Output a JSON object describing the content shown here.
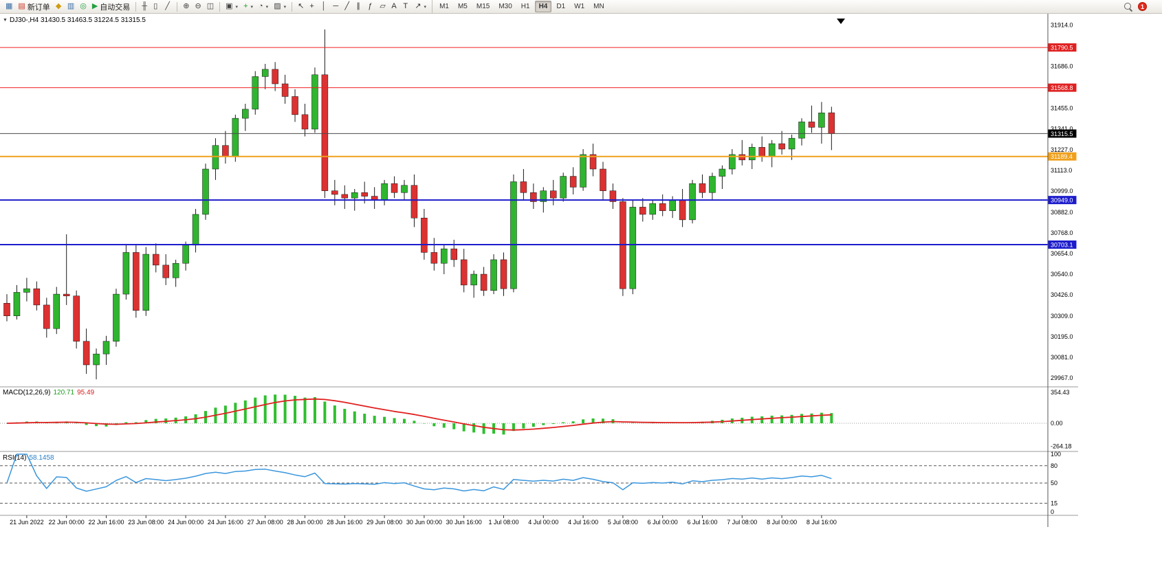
{
  "toolbar": {
    "groups": [
      {
        "name": "file-group",
        "items": [
          {
            "name": "new-chart-button",
            "glyph": "▦",
            "color": "#3a6ea5"
          },
          {
            "name": "new-order-button",
            "glyph": "▤",
            "color": "#cc3322",
            "label": "新订单"
          },
          {
            "name": "strategy-tester-button",
            "glyph": "◆",
            "color": "#d09c10"
          },
          {
            "name": "data-window-button",
            "glyph": "▥",
            "color": "#3a6ea5"
          },
          {
            "name": "navigator-button",
            "glyph": "◎",
            "color": "#22a040"
          },
          {
            "name": "auto-trading-button",
            "glyph": "▶",
            "color": "#22a040",
            "label": "自动交易"
          }
        ]
      },
      {
        "name": "chart-type-group",
        "items": [
          {
            "name": "bar-chart-button",
            "glyph": "╫",
            "color": "#444444"
          },
          {
            "name": "candlestick-chart-button",
            "glyph": "▯",
            "color": "#444444"
          },
          {
            "name": "line-chart-button",
            "glyph": "╱",
            "color": "#444444"
          }
        ]
      },
      {
        "name": "zoom-group",
        "items": [
          {
            "name": "zoom-in-button",
            "glyph": "⊕",
            "color": "#444444"
          },
          {
            "name": "zoom-out-button",
            "glyph": "⊖",
            "color": "#444444"
          },
          {
            "name": "tile-windows-button",
            "glyph": "◫",
            "color": "#444444"
          }
        ]
      },
      {
        "name": "chart-manage-group",
        "items": [
          {
            "name": "arrange-charts-button",
            "glyph": "▣",
            "color": "#444444",
            "dropdown": true
          },
          {
            "name": "indicators-button",
            "glyph": "+",
            "color": "#1d9e1d",
            "dropdown": true
          },
          {
            "name": "periods-button",
            "glyph": "◔",
            "color": "#444444",
            "dropdown": true
          },
          {
            "name": "templates-button",
            "glyph": "▨",
            "color": "#444444",
            "dropdown": true
          }
        ]
      },
      {
        "name": "drawing-group",
        "items": [
          {
            "name": "cursor-button",
            "glyph": "↖",
            "color": "#333333"
          },
          {
            "name": "crosshair-button",
            "glyph": "+",
            "color": "#333333"
          },
          {
            "name": "vertical-line-button",
            "glyph": "│",
            "color": "#333333"
          },
          {
            "name": "horizontal-line-button",
            "glyph": "─",
            "color": "#333333"
          },
          {
            "name": "trendline-button",
            "glyph": "╱",
            "color": "#333333"
          },
          {
            "name": "channel-button",
            "glyph": "∥",
            "color": "#333333"
          },
          {
            "name": "fibonacci-button",
            "glyph": "ƒ",
            "color": "#333333"
          },
          {
            "name": "shapes-button",
            "glyph": "▱",
            "color": "#333333"
          },
          {
            "name": "text-button",
            "glyph": "A",
            "color": "#333333"
          },
          {
            "name": "text-label-button",
            "glyph": "T",
            "color": "#333333"
          },
          {
            "name": "arrows-button",
            "glyph": "↗",
            "color": "#333333",
            "dropdown": true
          }
        ]
      }
    ],
    "timeframes": [
      "M1",
      "M5",
      "M15",
      "M30",
      "H1",
      "H4",
      "D1",
      "W1",
      "MN"
    ],
    "active_timeframe": "H4",
    "notification_count": "1"
  },
  "chart": {
    "menu_glyph": "▼",
    "header": "DJ30-,H4  31430.5 31463.5 31224.5 31315.5",
    "symbol": "DJ30-",
    "period": "H4",
    "ohlc": {
      "open": "31430.5",
      "high": "31463.5",
      "low": "31224.5",
      "close": "31315.5"
    }
  },
  "indicators": {
    "macd": {
      "label": "MACD(12,26,9)",
      "value_main": "120.71",
      "value_signal": "95.49",
      "fast": 12,
      "slow": 26,
      "signal": 9
    },
    "rsi": {
      "label": "RSI(14)",
      "value": "58.1458",
      "period": 14,
      "levels": [
        80,
        50,
        15
      ]
    }
  },
  "price_axis": {
    "labels": [
      "31914.0",
      "31686.0",
      "31455.0",
      "31341.0",
      "31227.0",
      "31113.0",
      "30999.0",
      "30882.0",
      "30768.0",
      "30654.0",
      "30540.0",
      "30426.0",
      "30309.0",
      "30195.0",
      "30081.0",
      "29967.0"
    ],
    "current_price": {
      "value": 31315.5,
      "label": "31315.5",
      "bg": "#000000",
      "fg": "#ffffff"
    }
  },
  "levels": [
    {
      "value": 31790.5,
      "label": "31790.5",
      "color": "#f02020",
      "width": 1,
      "label_bg": "#e02020"
    },
    {
      "value": 31568.8,
      "label": "31568.8",
      "color": "#f02020",
      "width": 1,
      "label_bg": "#e02020"
    },
    {
      "value": 31315.5,
      "label": "31315.5",
      "color": "#4a4a4a",
      "width": 1,
      "label_bg": "#000000"
    },
    {
      "value": 31189.4,
      "label": "31189.4",
      "color": "#f0a01c",
      "width": 2,
      "label_bg": "#f0a01c"
    },
    {
      "value": 30949.0,
      "label": "30949.0",
      "color": "#1c1ccc",
      "width": 2,
      "label_bg": "#1c1ccc"
    },
    {
      "value": 30703.1,
      "label": "30703.1",
      "color": "#1c1ccc",
      "width": 2,
      "label_bg": "#1c1ccc"
    }
  ],
  "macd_axis": [
    {
      "v": 354.43,
      "label": "354.43"
    },
    {
      "v": 0,
      "label": "0.00"
    },
    {
      "v": -264.18,
      "label": "-264.18"
    }
  ],
  "rsi_axis": [
    {
      "v": 100,
      "label": "100"
    },
    {
      "v": 80,
      "label": "80"
    },
    {
      "v": 50,
      "label": "50"
    },
    {
      "v": 15,
      "label": "15"
    },
    {
      "v": 0,
      "label": "0"
    }
  ],
  "time_axis": [
    "21 Jun 2022",
    "22 Jun 00:00",
    "22 Jun 16:00",
    "23 Jun 08:00",
    "24 Jun 00:00",
    "24 Jun 16:00",
    "27 Jun 08:00",
    "28 Jun 00:00",
    "28 Jun 16:00",
    "29 Jun 08:00",
    "30 Jun 00:00",
    "30 Jun 16:00",
    "1 Jul 08:00",
    "4 Jul 00:00",
    "4 Jul 16:00",
    "5 Jul 08:00",
    "6 Jul 00:00",
    "6 Jul 16:00",
    "7 Jul 08:00",
    "8 Jul 00:00",
    "8 Jul 16:00"
  ],
  "chart_data": {
    "type": "candlestick",
    "symbol": "DJ30-",
    "timeframe": "H4",
    "price_range": {
      "min": 29930,
      "max": 31950
    },
    "colors": {
      "up": "#2fb52f",
      "down": "#dc3232",
      "wick": "#1a1a1a",
      "macd_hist": "#2fbf2f",
      "macd_signal": "#e02020",
      "rsi_line": "#3a96dd"
    },
    "candles": [
      [
        30380,
        30430,
        30280,
        30310
      ],
      [
        30310,
        30480,
        30290,
        30440
      ],
      [
        30440,
        30520,
        30390,
        30460
      ],
      [
        30460,
        30500,
        30340,
        30370
      ],
      [
        30370,
        30410,
        30190,
        30240
      ],
      [
        30240,
        30470,
        30210,
        30430
      ],
      [
        30430,
        30760,
        30370,
        30420
      ],
      [
        30420,
        30450,
        30130,
        30170
      ],
      [
        30170,
        30240,
        29990,
        30040
      ],
      [
        30040,
        30130,
        29960,
        30100
      ],
      [
        30100,
        30200,
        30040,
        30170
      ],
      [
        30170,
        30460,
        30140,
        30430
      ],
      [
        30430,
        30700,
        30400,
        30660
      ],
      [
        30660,
        30700,
        30300,
        30340
      ],
      [
        30340,
        30690,
        30310,
        30650
      ],
      [
        30650,
        30710,
        30550,
        30590
      ],
      [
        30590,
        30650,
        30480,
        30520
      ],
      [
        30520,
        30620,
        30470,
        30600
      ],
      [
        30600,
        30720,
        30560,
        30700
      ],
      [
        30700,
        30900,
        30660,
        30870
      ],
      [
        30870,
        31150,
        30840,
        31120
      ],
      [
        31120,
        31290,
        31060,
        31250
      ],
      [
        31250,
        31330,
        31150,
        31190
      ],
      [
        31190,
        31420,
        31160,
        31400
      ],
      [
        31400,
        31480,
        31330,
        31450
      ],
      [
        31450,
        31660,
        31420,
        31630
      ],
      [
        31630,
        31700,
        31560,
        31670
      ],
      [
        31670,
        31710,
        31550,
        31590
      ],
      [
        31590,
        31640,
        31480,
        31520
      ],
      [
        31520,
        31560,
        31380,
        31420
      ],
      [
        31420,
        31480,
        31300,
        31340
      ],
      [
        31340,
        31680,
        31320,
        31640
      ],
      [
        31640,
        31890,
        30960,
        31000
      ],
      [
        31000,
        31060,
        30920,
        30980
      ],
      [
        30980,
        31030,
        30900,
        30960
      ],
      [
        30960,
        31010,
        30890,
        30990
      ],
      [
        30990,
        31050,
        30930,
        30970
      ],
      [
        30970,
        31020,
        30900,
        30950
      ],
      [
        30950,
        31060,
        30920,
        31040
      ],
      [
        31040,
        31080,
        30960,
        30990
      ],
      [
        30990,
        31060,
        30950,
        31030
      ],
      [
        31030,
        31090,
        30800,
        30850
      ],
      [
        30850,
        30900,
        30620,
        30660
      ],
      [
        30660,
        30740,
        30560,
        30600
      ],
      [
        30600,
        30700,
        30540,
        30680
      ],
      [
        30680,
        30730,
        30580,
        30620
      ],
      [
        30620,
        30680,
        30440,
        30480
      ],
      [
        30480,
        30560,
        30410,
        30540
      ],
      [
        30540,
        30580,
        30420,
        30450
      ],
      [
        30450,
        30650,
        30430,
        30620
      ],
      [
        30620,
        30660,
        30420,
        30460
      ],
      [
        30460,
        31090,
        30440,
        31050
      ],
      [
        31050,
        31120,
        30950,
        30990
      ],
      [
        30990,
        31040,
        30900,
        30940
      ],
      [
        30940,
        31020,
        30880,
        31000
      ],
      [
        31000,
        31060,
        30920,
        30960
      ],
      [
        30960,
        31100,
        30940,
        31080
      ],
      [
        31080,
        31130,
        30980,
        31020
      ],
      [
        31020,
        31230,
        31000,
        31200
      ],
      [
        31200,
        31260,
        31080,
        31120
      ],
      [
        31120,
        31160,
        30950,
        31000
      ],
      [
        31000,
        31040,
        30900,
        30940
      ],
      [
        30940,
        30960,
        30420,
        30460
      ],
      [
        30460,
        30950,
        30430,
        30910
      ],
      [
        30910,
        30960,
        30830,
        30870
      ],
      [
        30870,
        30950,
        30840,
        30930
      ],
      [
        30930,
        30980,
        30860,
        30890
      ],
      [
        30890,
        30970,
        30850,
        30950
      ],
      [
        30950,
        31010,
        30800,
        30840
      ],
      [
        30840,
        31060,
        30820,
        31040
      ],
      [
        31040,
        31090,
        30960,
        30990
      ],
      [
        30990,
        31100,
        30950,
        31080
      ],
      [
        31080,
        31140,
        31010,
        31120
      ],
      [
        31120,
        31230,
        31090,
        31200
      ],
      [
        31200,
        31280,
        31140,
        31170
      ],
      [
        31170,
        31260,
        31120,
        31240
      ],
      [
        31240,
        31300,
        31160,
        31190
      ],
      [
        31190,
        31280,
        31130,
        31260
      ],
      [
        31260,
        31330,
        31200,
        31230
      ],
      [
        31230,
        31310,
        31170,
        31290
      ],
      [
        31290,
        31400,
        31250,
        31380
      ],
      [
        31380,
        31470,
        31320,
        31350
      ],
      [
        31350,
        31490,
        31260,
        31430
      ],
      [
        31430.5,
        31463.5,
        31224.5,
        31315.5
      ]
    ]
  }
}
